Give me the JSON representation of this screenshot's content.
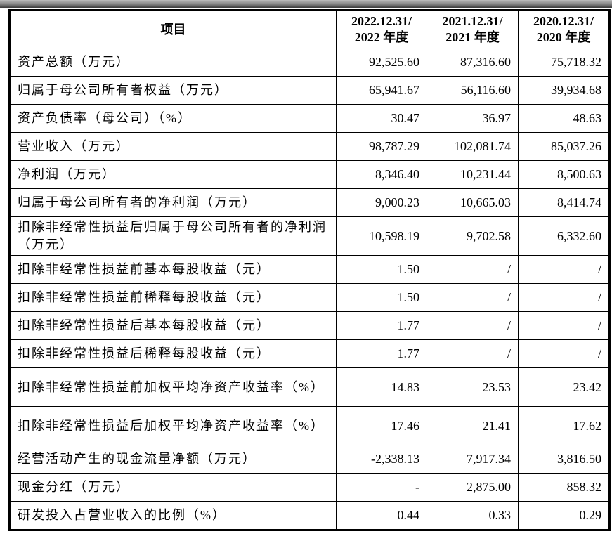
{
  "header": {
    "item": "项目",
    "cols": [
      "2022.12.31/",
      "2022 年度",
      "2021.12.31/",
      "2021 年度",
      "2020.12.31/",
      "2020 年度"
    ]
  },
  "rows": [
    {
      "label": "资产总额（万元）",
      "v": [
        "92,525.60",
        "87,316.60",
        "75,718.32"
      ]
    },
    {
      "label": "归属于母公司所有者权益（万元）",
      "v": [
        "65,941.67",
        "56,116.60",
        "39,934.68"
      ]
    },
    {
      "label": "资产负债率（母公司）（%）",
      "v": [
        "30.47",
        "36.97",
        "48.63"
      ]
    },
    {
      "label": "营业收入（万元）",
      "v": [
        "98,787.29",
        "102,081.74",
        "85,037.26"
      ]
    },
    {
      "label": "净利润（万元）",
      "v": [
        "8,346.40",
        "10,231.44",
        "8,500.63"
      ]
    },
    {
      "label": "归属于母公司所有者的净利润（万元）",
      "v": [
        "9,000.23",
        "10,665.03",
        "8,414.74"
      ]
    },
    {
      "label": "扣除非经常性损益后归属于母公司所有者的净利润（万元）",
      "v": [
        "10,598.19",
        "9,702.58",
        "6,332.60"
      ]
    },
    {
      "label": "扣除非经常性损益前基本每股收益（元）",
      "v": [
        "1.50",
        "/",
        "/"
      ]
    },
    {
      "label": "扣除非经常性损益前稀释每股收益（元）",
      "v": [
        "1.50",
        "/",
        "/"
      ]
    },
    {
      "label": "扣除非经常性损益后基本每股收益（元）",
      "v": [
        "1.77",
        "/",
        "/"
      ]
    },
    {
      "label": "扣除非经常性损益后稀释每股收益（元）",
      "v": [
        "1.77",
        "/",
        "/"
      ]
    },
    {
      "label": "扣除非经常性损益前加权平均净资产收益率（%）",
      "v": [
        "14.83",
        "23.53",
        "23.42"
      ]
    },
    {
      "label": "扣除非经常性损益后加权平均净资产收益率（%）",
      "v": [
        "17.46",
        "21.41",
        "17.62"
      ]
    },
    {
      "label": "经营活动产生的现金流量净额（万元）",
      "v": [
        "-2,338.13",
        "7,917.34",
        "3,816.50"
      ]
    },
    {
      "label": "现金分红（万元）",
      "v": [
        "-",
        "2,875.00",
        "858.32"
      ]
    },
    {
      "label": "研发投入占营业收入的比例（%）",
      "v": [
        "0.44",
        "0.33",
        "0.29"
      ]
    }
  ]
}
